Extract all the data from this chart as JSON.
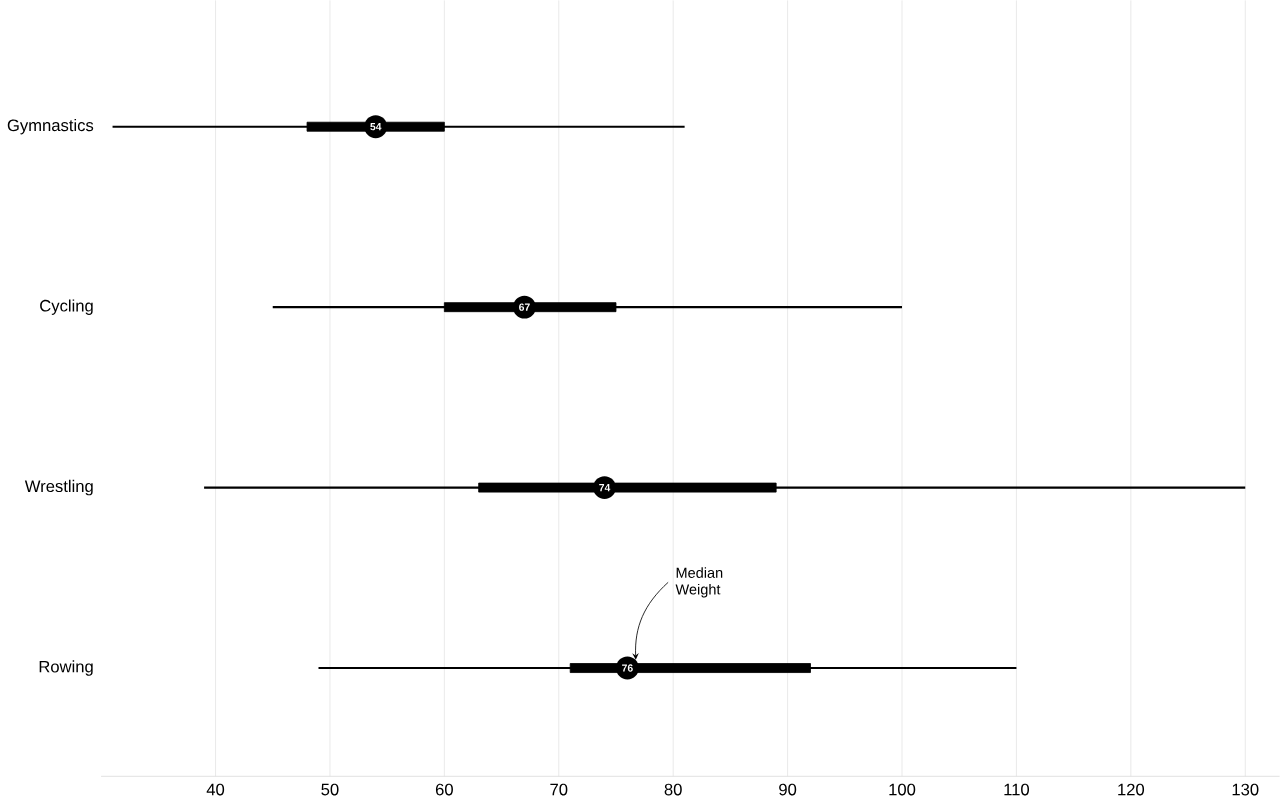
{
  "chart_data": {
    "type": "box",
    "orientation": "horizontal",
    "categories": [
      "Gymnastics",
      "Cycling",
      "Wrestling",
      "Rowing"
    ],
    "boxes": [
      {
        "low": 31,
        "q1": 48,
        "median": 54,
        "q3": 60,
        "high": 81
      },
      {
        "low": 45,
        "q1": 60,
        "median": 67,
        "q3": 75,
        "high": 100
      },
      {
        "low": 39,
        "q1": 63,
        "median": 74,
        "q3": 89,
        "high": 130
      },
      {
        "low": 49,
        "q1": 71,
        "median": 76,
        "q3": 92,
        "high": 110
      }
    ],
    "value_labels": [
      "54",
      "67",
      "74",
      "76"
    ],
    "xlim": [
      30,
      133
    ],
    "xticks": [
      40,
      50,
      60,
      70,
      80,
      90,
      100,
      110,
      120,
      130
    ],
    "grid": "x",
    "annotations": [
      "Median Weight"
    ]
  }
}
